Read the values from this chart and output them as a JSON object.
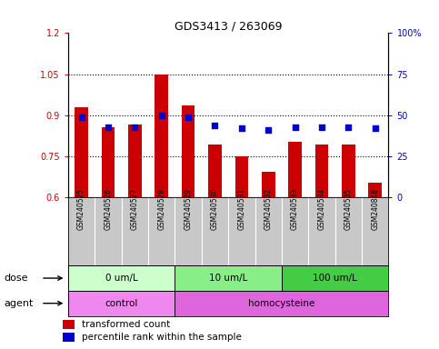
{
  "title": "GDS3413 / 263069",
  "samples": [
    "GSM240525",
    "GSM240526",
    "GSM240527",
    "GSM240528",
    "GSM240529",
    "GSM240530",
    "GSM240531",
    "GSM240532",
    "GSM240533",
    "GSM240534",
    "GSM240535",
    "GSM240848"
  ],
  "transformed_count": [
    0.93,
    0.855,
    0.865,
    1.048,
    0.935,
    0.795,
    0.752,
    0.695,
    0.805,
    0.795,
    0.795,
    0.655
  ],
  "percentile_rank": [
    49,
    43,
    43,
    50,
    49,
    44,
    42,
    41,
    43,
    43,
    43,
    42
  ],
  "bar_color": "#CC0000",
  "dot_color": "#0000CC",
  "ylim_left": [
    0.6,
    1.2
  ],
  "ylim_right": [
    0,
    100
  ],
  "yticks_left": [
    0.6,
    0.75,
    0.9,
    1.05,
    1.2
  ],
  "ytick_labels_left": [
    "0.6",
    "0.75",
    "0.9",
    "1.05",
    "1.2"
  ],
  "yticks_right": [
    0,
    25,
    50,
    75,
    100
  ],
  "ytick_labels_right": [
    "0",
    "25",
    "50",
    "75",
    "100%"
  ],
  "hlines": [
    0.75,
    0.9,
    1.05
  ],
  "dose_groups": [
    {
      "label": "0 um/L",
      "start": 0,
      "end": 4,
      "color": "#CCFFCC"
    },
    {
      "label": "10 um/L",
      "start": 4,
      "end": 8,
      "color": "#88EE88"
    },
    {
      "label": "100 um/L",
      "start": 8,
      "end": 12,
      "color": "#44CC44"
    }
  ],
  "agent_groups": [
    {
      "label": "control",
      "start": 0,
      "end": 4,
      "color": "#EE88EE"
    },
    {
      "label": "homocysteine",
      "start": 4,
      "end": 12,
      "color": "#DD66DD"
    }
  ],
  "legend_bar_label": "transformed count",
  "legend_dot_label": "percentile rank within the sample",
  "dose_label": "dose",
  "agent_label": "agent",
  "background_color": "#FFFFFF",
  "tick_bg_color": "#C8C8C8"
}
